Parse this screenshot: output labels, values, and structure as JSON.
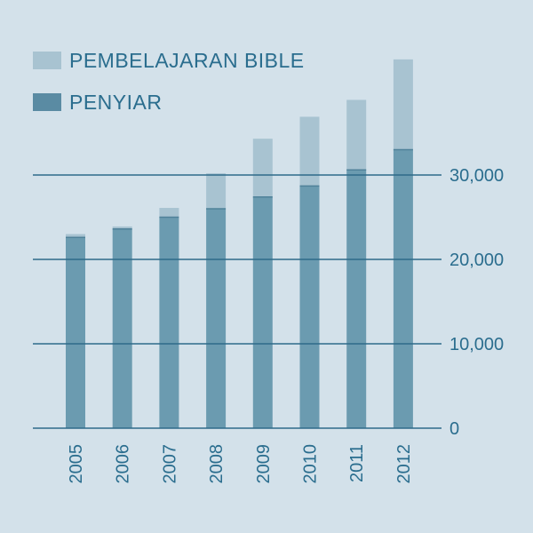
{
  "chart_data": {
    "type": "bar",
    "stacked": true,
    "categories": [
      "2005",
      "2006",
      "2007",
      "2008",
      "2009",
      "2010",
      "2011",
      "2012"
    ],
    "series": [
      {
        "name": "PENYIAR",
        "color": "#6b9bb0",
        "values": [
          22600,
          23600,
          25000,
          26000,
          27400,
          28700,
          30600,
          33000
        ]
      },
      {
        "name": "PEMBELAJARAN BIBLE",
        "color": "#a8c3d1",
        "values": [
          400,
          300,
          1100,
          4200,
          6900,
          8200,
          8300,
          10700
        ]
      }
    ],
    "legend": {
      "position": "top-left",
      "items": [
        {
          "label": "PEMBELAJARAN BIBLE",
          "color": "#a8c3d1"
        },
        {
          "label": "PENYIAR",
          "color": "#5a8ba3"
        }
      ]
    },
    "yaxis": {
      "position": "right",
      "ticks": [
        0,
        10000,
        20000,
        30000
      ],
      "tick_labels": [
        "0",
        "10,000",
        "20,000",
        "30,000"
      ],
      "ylim": [
        0,
        43700
      ]
    },
    "grid": true,
    "xlabel": "",
    "ylabel": "",
    "title": ""
  }
}
